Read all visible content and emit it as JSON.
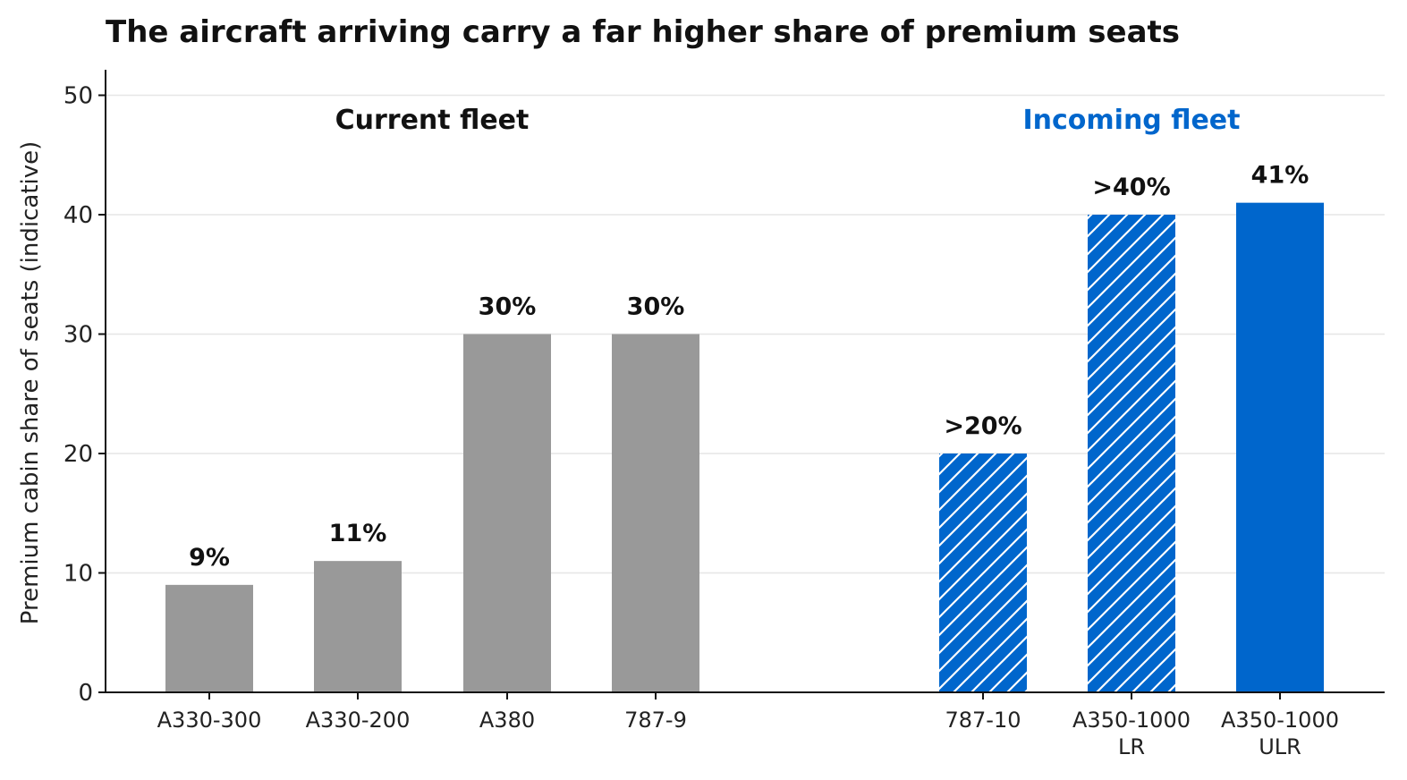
{
  "chart_data": {
    "type": "bar",
    "title": "The aircraft arriving carry a far higher share of premium seats",
    "ylabel": "Premium cabin share of seats (indicative)",
    "xlabel": "",
    "ylim": [
      0,
      52
    ],
    "yticks": [
      0,
      10,
      20,
      30,
      40,
      50
    ],
    "grid": "horizontal",
    "groups": [
      {
        "label": "Current fleet",
        "color": "#111111",
        "categories": [
          "A330-300",
          "A330-200",
          "A380",
          "787-9"
        ]
      },
      {
        "label": "Incoming fleet",
        "color": "#0066cc",
        "categories": [
          "787-10",
          "A350-1000 LR",
          "A350-1000 ULR"
        ]
      }
    ],
    "bars": [
      {
        "category": [
          "A330-300"
        ],
        "value": 9,
        "label": "9%",
        "group": "Current fleet",
        "color": "#999999",
        "hatched": false
      },
      {
        "category": [
          "A330-200"
        ],
        "value": 11,
        "label": "11%",
        "group": "Current fleet",
        "color": "#999999",
        "hatched": false
      },
      {
        "category": [
          "A380"
        ],
        "value": 30,
        "label": "30%",
        "group": "Current fleet",
        "color": "#999999",
        "hatched": false
      },
      {
        "category": [
          "787-9"
        ],
        "value": 30,
        "label": "30%",
        "group": "Current fleet",
        "color": "#999999",
        "hatched": false
      },
      {
        "category": [
          "787-10"
        ],
        "value": 20,
        "label": ">20%",
        "group": "Incoming fleet",
        "color": "#0066cc",
        "hatched": true
      },
      {
        "category": [
          "A350-1000",
          "LR"
        ],
        "value": 40,
        "label": ">40%",
        "group": "Incoming fleet",
        "color": "#0066cc",
        "hatched": true
      },
      {
        "category": [
          "A350-1000",
          "ULR"
        ],
        "value": 41,
        "label": "41%",
        "group": "Incoming fleet",
        "color": "#0066cc",
        "hatched": false
      }
    ]
  }
}
